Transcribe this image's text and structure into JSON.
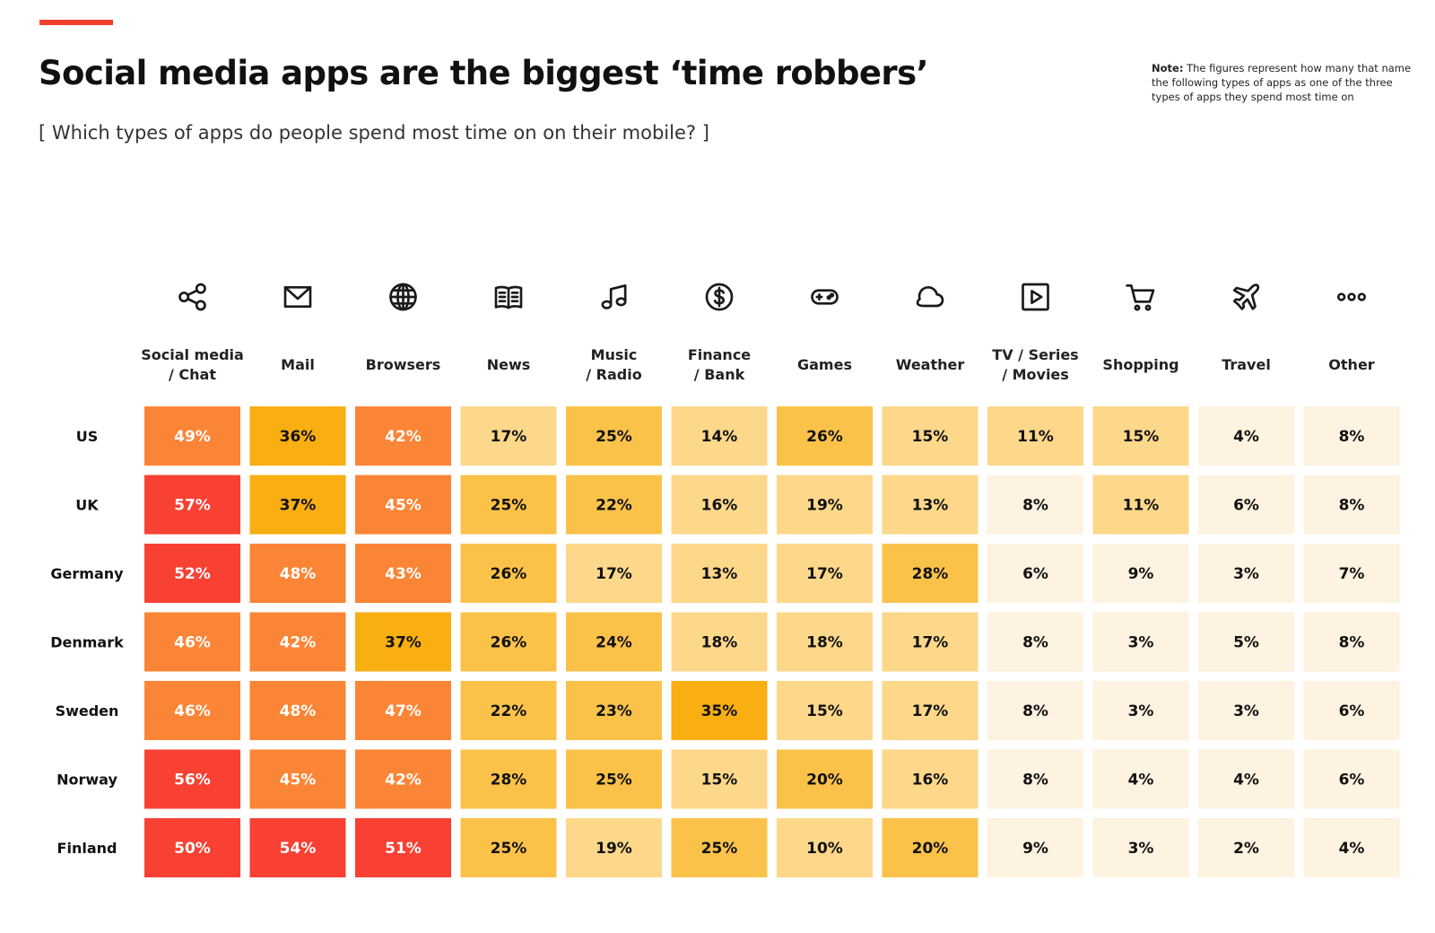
{
  "header": {
    "title": "Social media apps are the biggest ‘time robbers’",
    "subtitle": "[ Which types of apps do people spend most time on on their mobile? ]",
    "note_label": "Note:",
    "note_text": "The figures represent how many that name the following types of apps as one of the three types of apps they spend most time on",
    "accent_color": "#f2402f"
  },
  "chart_data": {
    "type": "heatmap",
    "unit": "%",
    "columns": [
      {
        "label": [
          "Social media",
          "/ Chat"
        ],
        "icon": "share-icon"
      },
      {
        "label": [
          "Mail"
        ],
        "icon": "mail-icon"
      },
      {
        "label": [
          "Browsers"
        ],
        "icon": "globe-icon"
      },
      {
        "label": [
          "News"
        ],
        "icon": "book-icon"
      },
      {
        "label": [
          "Music",
          "/ Radio"
        ],
        "icon": "music-note-icon"
      },
      {
        "label": [
          "Finance",
          "/ Bank"
        ],
        "icon": "dollar-icon"
      },
      {
        "label": [
          "Games"
        ],
        "icon": "gamepad-icon"
      },
      {
        "label": [
          "Weather"
        ],
        "icon": "cloud-icon"
      },
      {
        "label": [
          "TV / Series",
          "/ Movies"
        ],
        "icon": "play-icon"
      },
      {
        "label": [
          "Shopping"
        ],
        "icon": "cart-icon"
      },
      {
        "label": [
          "Travel"
        ],
        "icon": "airplane-icon"
      },
      {
        "label": [
          "Other"
        ],
        "icon": "more-dots-icon"
      }
    ],
    "rows": [
      "US",
      "UK",
      "Germany",
      "Denmark",
      "Sweden",
      "Norway",
      "Finland"
    ],
    "values": [
      [
        49,
        36,
        42,
        17,
        25,
        14,
        26,
        15,
        11,
        15,
        4,
        8
      ],
      [
        57,
        37,
        45,
        25,
        22,
        16,
        19,
        13,
        8,
        11,
        6,
        8
      ],
      [
        52,
        48,
        43,
        26,
        17,
        13,
        17,
        28,
        6,
        9,
        3,
        7
      ],
      [
        46,
        42,
        37,
        26,
        24,
        18,
        18,
        17,
        8,
        3,
        5,
        8
      ],
      [
        46,
        48,
        47,
        22,
        23,
        35,
        15,
        17,
        8,
        3,
        3,
        6
      ],
      [
        56,
        45,
        42,
        28,
        25,
        15,
        20,
        16,
        8,
        4,
        4,
        6
      ],
      [
        50,
        54,
        51,
        25,
        19,
        25,
        10,
        20,
        9,
        3,
        2,
        4
      ]
    ],
    "color_scale": [
      {
        "min": 50,
        "color": "#f84033",
        "text": "#ffffff"
      },
      {
        "min": 38,
        "color": "#fb8536",
        "text": "#ffffff"
      },
      {
        "min": 30,
        "color": "#f9ae12",
        "text": "#111111"
      },
      {
        "min": 20,
        "color": "#fbc24a",
        "text": "#111111"
      },
      {
        "min": 10,
        "color": "#fdd78a",
        "text": "#111111"
      },
      {
        "min": 0,
        "color": "#fef2e0",
        "text": "#111111"
      }
    ]
  }
}
